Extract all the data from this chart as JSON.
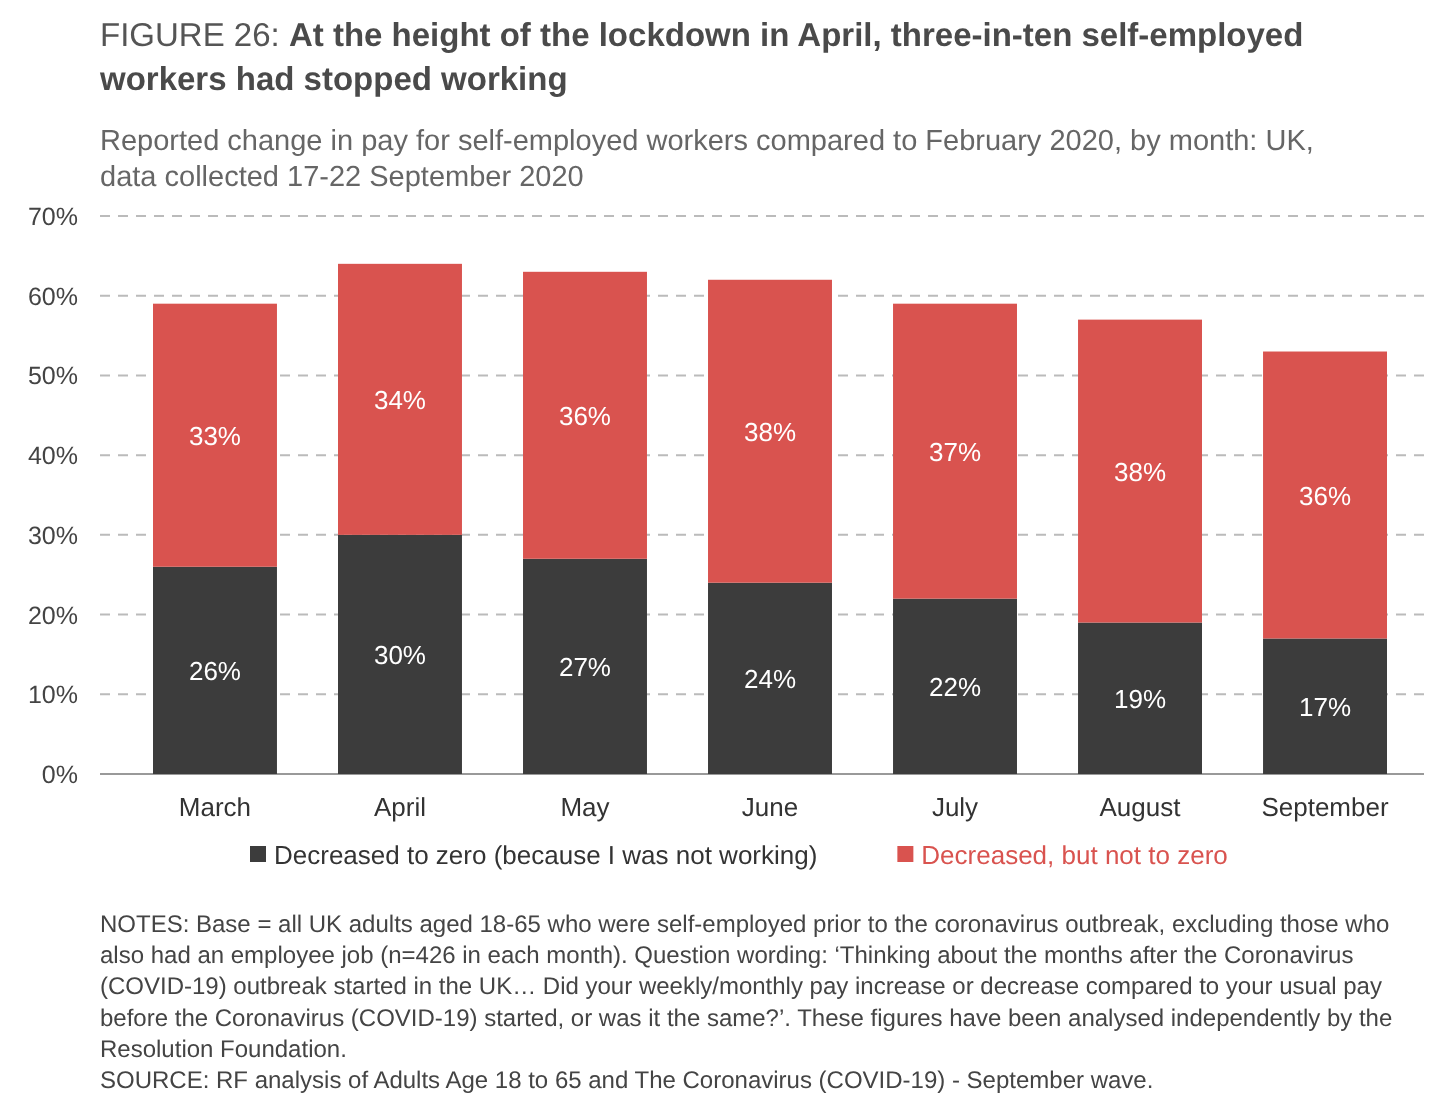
{
  "chart_data": {
    "type": "bar",
    "title": "FIGURE 26: At the height of the lockdown in April, three-in-ten self-employed workers had stopped working",
    "subtitle": "Reported change in pay for self-employed workers compared to February 2020, by month: UK, data collected 17-22 September 2020",
    "categories": [
      "March",
      "April",
      "May",
      "June",
      "July",
      "August",
      "September"
    ],
    "series": [
      {
        "name": "Decreased to zero (because I was not working)",
        "color": "#3c3c3c",
        "values": [
          26,
          30,
          27,
          24,
          22,
          19,
          17
        ],
        "value_labels": [
          "26%",
          "30%",
          "27%",
          "24%",
          "22%",
          "19%",
          "17%"
        ]
      },
      {
        "name": "Decreased, but not to zero",
        "color": "#d9534f",
        "values": [
          33,
          34,
          36,
          38,
          37,
          38,
          36
        ],
        "value_labels": [
          "33%",
          "34%",
          "36%",
          "38%",
          "37%",
          "38%",
          "36%"
        ]
      }
    ],
    "stacked": true,
    "ylim": [
      0,
      70
    ],
    "yticks": [
      {
        "value": 0,
        "label": "0%"
      },
      {
        "value": 10,
        "label": "10%"
      },
      {
        "value": 20,
        "label": "20%"
      },
      {
        "value": 30,
        "label": "30%"
      },
      {
        "value": 40,
        "label": "40%"
      },
      {
        "value": 50,
        "label": "50%"
      },
      {
        "value": 60,
        "label": "60%"
      },
      {
        "value": 70,
        "label": "70%"
      }
    ],
    "grid": "y",
    "legend": "bottom",
    "annotations": [
      "NOTES: Base = all UK adults aged 18-65 who were self-employed prior to the coronavirus outbreak, excluding those who also had an employee job (n=426 in each month). Question wording: ‘Thinking about the months after the Coronavirus (COVID-19) outbreak started in the UK… Did your weekly/monthly pay increase or decrease compared to your usual pay before the Coronavirus (COVID-19) started, or was it the same?’. These figures have been analysed independently by the Resolution Foundation.",
      "SOURCE: RF analysis of Adults Age 18 to 65 and The Coronavirus (COVID-19) - September wave."
    ]
  }
}
